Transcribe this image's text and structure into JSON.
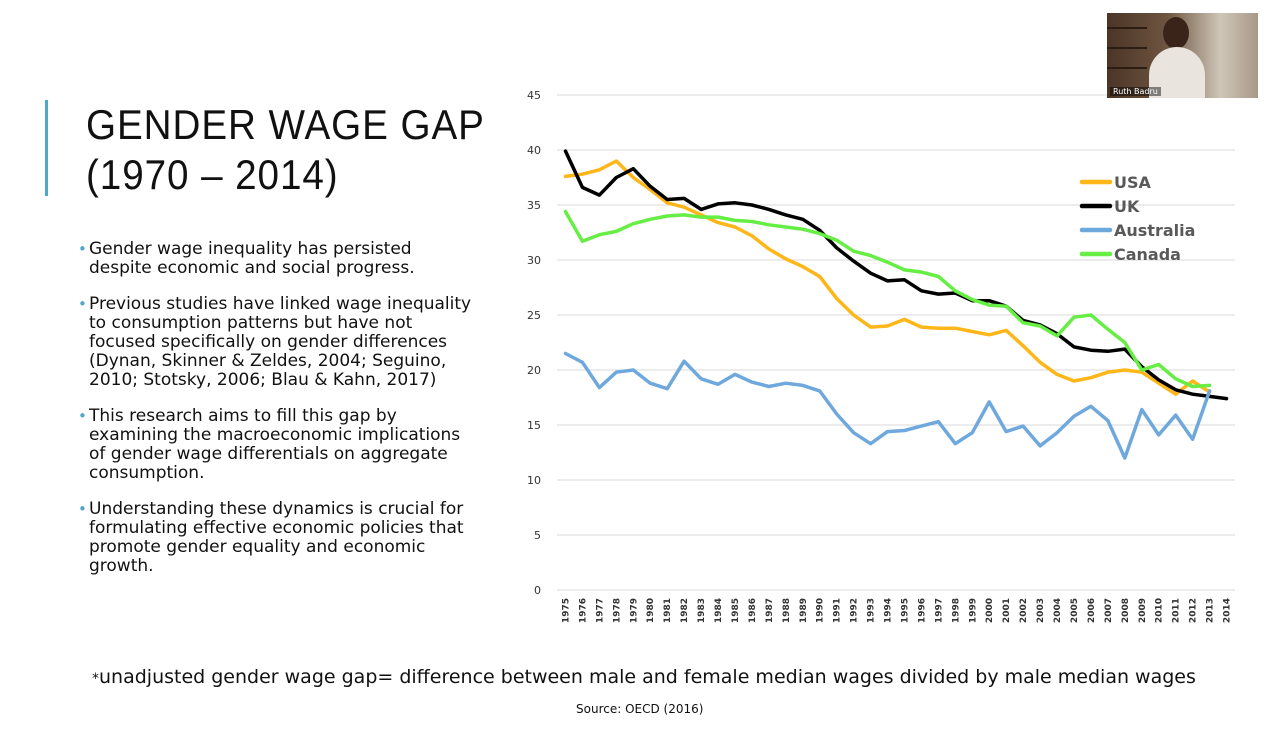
{
  "slide": {
    "title_lines": [
      "GENDER WAGE GAP",
      "(1970 – 2014)"
    ],
    "bullets": [
      "Gender wage inequality has persisted despite economic and social progress.",
      " Previous studies have linked wage inequality to consumption patterns but have not focused specifically on gender differences (Dynan, Skinner & Zeldes, 2004; Seguino, 2010; Stotsky, 2006; Blau & Kahn, 2017)",
      "This research aims to fill this gap by examining the macroeconomic implications of gender wage differentials on aggregate consumption.",
      "Understanding these dynamics is crucial for formulating effective economic policies that promote gender equality and economic growth."
    ],
    "footnote_star": "*",
    "footnote": "unadjusted gender wage gap= difference between male and female median wages divided by male median wages",
    "source": "Source: OECD (2016)",
    "accent_color": "#4fa8c9"
  },
  "video": {
    "participant_name": "Ruth Badru"
  },
  "chart_data": {
    "type": "line",
    "title": "",
    "xlabel": "",
    "ylabel": "",
    "ylim": [
      0,
      45
    ],
    "yticks": [
      0,
      5,
      10,
      15,
      20,
      25,
      30,
      35,
      40,
      45
    ],
    "grid": true,
    "legend_position": "top-right",
    "x": [
      1975,
      1976,
      1977,
      1978,
      1979,
      1980,
      1981,
      1982,
      1983,
      1984,
      1985,
      1986,
      1987,
      1988,
      1989,
      1990,
      1991,
      1992,
      1993,
      1994,
      1995,
      1996,
      1997,
      1998,
      1999,
      2000,
      2001,
      2002,
      2003,
      2004,
      2005,
      2006,
      2007,
      2008,
      2009,
      2010,
      2011,
      2012,
      2013,
      2014
    ],
    "x_labels": [
      "1975",
      "1976",
      "1977",
      "1978",
      "1979",
      "1980",
      "1981",
      "1982",
      "1983",
      "1984",
      "1985",
      "1986",
      "1987",
      "1988",
      "1989",
      "1990",
      "1991",
      "1992",
      "1993",
      "1994",
      "1995",
      "1996",
      "1997",
      "1998",
      "1999",
      "2000",
      "2001",
      "2002",
      "2003",
      "2004",
      "2005",
      "2006",
      "2007",
      "2008",
      "2009",
      "2010",
      "2011",
      "2012",
      "2013",
      "2014"
    ],
    "series": [
      {
        "name": "USA",
        "color": "#ffb619",
        "values": [
          37.6,
          37.8,
          38.2,
          39.0,
          37.5,
          36.4,
          35.2,
          34.8,
          34.1,
          33.4,
          33.0,
          32.2,
          31.0,
          30.1,
          29.4,
          28.5,
          26.5,
          25.0,
          23.9,
          24.0,
          24.6,
          23.9,
          23.8,
          23.8,
          23.5,
          23.2,
          23.6,
          22.2,
          20.7,
          19.6,
          19.0,
          19.3,
          19.8,
          20.0,
          19.8,
          18.8,
          17.8,
          19.0,
          18.0,
          null
        ]
      },
      {
        "name": "UK",
        "color": "#000000",
        "values": [
          39.9,
          36.6,
          35.9,
          37.5,
          38.3,
          36.7,
          35.5,
          35.6,
          34.6,
          35.1,
          35.2,
          35.0,
          34.6,
          34.1,
          33.7,
          32.7,
          31.1,
          29.9,
          28.8,
          28.1,
          28.2,
          27.2,
          26.9,
          27.0,
          26.3,
          26.3,
          25.8,
          24.5,
          24.1,
          23.3,
          22.1,
          21.8,
          21.7,
          21.9,
          20.3,
          19.1,
          18.2,
          17.8,
          17.6,
          17.4
        ]
      },
      {
        "name": "Australia",
        "color": "#6fa8dc",
        "values": [
          21.5,
          20.7,
          18.4,
          19.8,
          20.0,
          18.8,
          18.3,
          20.8,
          19.2,
          18.7,
          19.6,
          18.9,
          18.5,
          18.8,
          18.6,
          18.1,
          16.0,
          14.3,
          13.3,
          14.4,
          14.5,
          14.9,
          15.3,
          13.3,
          14.3,
          17.1,
          14.4,
          14.9,
          13.1,
          14.3,
          15.8,
          16.7,
          15.4,
          12.0,
          16.4,
          14.1,
          15.9,
          13.7,
          18.1,
          null
        ]
      },
      {
        "name": "Canada",
        "color": "#66ee44",
        "values": [
          34.4,
          31.7,
          32.3,
          32.6,
          33.3,
          33.7,
          34.0,
          34.1,
          33.9,
          33.9,
          33.6,
          33.5,
          33.2,
          33.0,
          32.8,
          32.4,
          31.8,
          30.8,
          30.4,
          29.8,
          29.1,
          28.9,
          28.5,
          27.2,
          26.4,
          25.9,
          25.8,
          24.3,
          24.0,
          23.1,
          24.8,
          25.0,
          23.7,
          22.5,
          20.0,
          20.5,
          19.2,
          18.5,
          18.6,
          null
        ]
      }
    ]
  }
}
